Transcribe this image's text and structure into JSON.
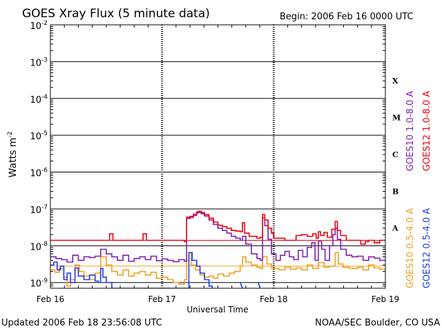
{
  "chart_data": {
    "type": "line",
    "title": "GOES Xray Flux (5 minute data)",
    "begin_label": "Begin:  2006 Feb 16 0000 UTC",
    "ylabel_text": "Watts m",
    "ylabel_sup": "-2",
    "xlabel": "Universal Time",
    "yscale": "log",
    "ylim": [
      7e-10,
      0.01
    ],
    "xlim": [
      16,
      19
    ],
    "x_ticks": [
      {
        "value": 16,
        "label": "Feb 16"
      },
      {
        "value": 17,
        "label": "Feb 17"
      },
      {
        "value": 18,
        "label": "Feb 18"
      },
      {
        "value": 19,
        "label": "Feb 19"
      }
    ],
    "y_ticks": [
      {
        "exp": -2,
        "base": "10",
        "sup": "-2"
      },
      {
        "exp": -3,
        "base": "10",
        "sup": "-3"
      },
      {
        "exp": -4,
        "base": "10",
        "sup": "-4"
      },
      {
        "exp": -5,
        "base": "10",
        "sup": "-5"
      },
      {
        "exp": -6,
        "base": "10",
        "sup": "-6"
      },
      {
        "exp": -7,
        "base": "10",
        "sup": "-7"
      },
      {
        "exp": -8,
        "base": "10",
        "sup": "-8"
      },
      {
        "exp": -9,
        "base": "10",
        "sup": "-9"
      }
    ],
    "flare_classes": [
      {
        "label": "X",
        "exp": -3.5
      },
      {
        "label": "M",
        "exp": -4.5
      },
      {
        "label": "C",
        "exp": -5.5
      },
      {
        "label": "B",
        "exp": -6.5
      },
      {
        "label": "A",
        "exp": -7.5
      }
    ],
    "legend_right": [
      {
        "name": "GOES12 1.0-8.0 A",
        "color": "#e8000b"
      },
      {
        "name": "GOES10 1.0-8.0 A",
        "color": "#7f1fb0"
      },
      {
        "name": "GOES12 0.5-4.0 A",
        "color": "#1f3fe0"
      },
      {
        "name": "GOES10 0.5-4.0 A",
        "color": "#f0a020"
      }
    ],
    "series": [
      {
        "name": "GOES12 1.0-8.0 A",
        "color": "#e8000b",
        "points": [
          [
            16.0,
            1.4e-08
          ],
          [
            16.5,
            1.4e-08
          ],
          [
            16.53,
            2.1e-08
          ],
          [
            16.56,
            1.4e-08
          ],
          [
            16.8,
            1.4e-08
          ],
          [
            16.83,
            2.1e-08
          ],
          [
            16.86,
            1.4e-08
          ],
          [
            17.2,
            1.4e-08
          ],
          [
            17.2,
            1.3e-08
          ],
          [
            17.22,
            1.4e-08
          ],
          [
            17.22,
            6e-08
          ],
          [
            17.25,
            6.3e-08
          ],
          [
            17.28,
            7.2e-08
          ],
          [
            17.31,
            8.4e-08
          ],
          [
            17.33,
            8.6e-08
          ],
          [
            17.35,
            8e-08
          ],
          [
            17.38,
            7e-08
          ],
          [
            17.42,
            5.6e-08
          ],
          [
            17.46,
            4.4e-08
          ],
          [
            17.5,
            3.6e-08
          ],
          [
            17.54,
            3.3e-08
          ],
          [
            17.58,
            3e-08
          ],
          [
            17.62,
            2.6e-08
          ],
          [
            17.66,
            2.5e-08
          ],
          [
            17.7,
            2.4e-08
          ],
          [
            17.72,
            4.2e-08
          ],
          [
            17.74,
            2.2e-08
          ],
          [
            17.78,
            1.8e-08
          ],
          [
            17.85,
            1.6e-08
          ],
          [
            17.88,
            1.7e-08
          ],
          [
            17.9,
            7e-08
          ],
          [
            17.92,
            5e-08
          ],
          [
            17.95,
            3e-08
          ],
          [
            17.98,
            2.2e-08
          ],
          [
            18.0,
            1.6e-08
          ],
          [
            18.1,
            1.4e-08
          ],
          [
            18.18,
            1.4e-08
          ],
          [
            18.2,
            1.9e-08
          ],
          [
            18.25,
            2e-08
          ],
          [
            18.3,
            1.8e-08
          ],
          [
            18.35,
            2.1e-08
          ],
          [
            18.38,
            1.6e-08
          ],
          [
            18.4,
            2.4e-08
          ],
          [
            18.42,
            1.9e-08
          ],
          [
            18.45,
            2.3e-08
          ],
          [
            18.48,
            1.7e-08
          ],
          [
            18.52,
            2.8e-08
          ],
          [
            18.55,
            4.6e-08
          ],
          [
            18.57,
            2.6e-08
          ],
          [
            18.6,
            1.9e-08
          ],
          [
            18.65,
            1.4e-08
          ],
          [
            18.7,
            1.4e-08
          ],
          [
            18.75,
            1.4e-08
          ],
          [
            18.78,
            1.1e-08
          ],
          [
            18.82,
            1.3e-08
          ],
          [
            18.85,
            1.4e-08
          ],
          [
            18.9,
            1.2e-08
          ],
          [
            18.95,
            1.4e-08
          ],
          [
            19.0,
            1.4e-08
          ]
        ]
      },
      {
        "name": "GOES10 1.0-8.0 A",
        "color": "#7f1fb0",
        "points": [
          [
            16.0,
            5e-09
          ],
          [
            16.05,
            4.5e-09
          ],
          [
            16.1,
            4.2e-09
          ],
          [
            16.15,
            3.6e-09
          ],
          [
            16.2,
            5.5e-09
          ],
          [
            16.25,
            4e-09
          ],
          [
            16.3,
            5e-09
          ],
          [
            16.35,
            4.8e-09
          ],
          [
            16.4,
            5.2e-09
          ],
          [
            16.45,
            8e-09
          ],
          [
            16.5,
            6e-09
          ],
          [
            16.55,
            5e-09
          ],
          [
            16.6,
            4e-09
          ],
          [
            16.65,
            5.5e-09
          ],
          [
            16.7,
            3.8e-09
          ],
          [
            16.75,
            4.5e-09
          ],
          [
            16.8,
            5e-09
          ],
          [
            16.85,
            4.2e-09
          ],
          [
            16.9,
            5.2e-09
          ],
          [
            16.95,
            3.9e-09
          ],
          [
            17.0,
            4.4e-09
          ],
          [
            17.05,
            4e-09
          ],
          [
            17.1,
            3.7e-09
          ],
          [
            17.15,
            4.2e-09
          ],
          [
            17.2,
            3.8e-09
          ],
          [
            17.22,
            5.5e-08
          ],
          [
            17.25,
            5.8e-08
          ],
          [
            17.28,
            6.6e-08
          ],
          [
            17.31,
            7.8e-08
          ],
          [
            17.33,
            8e-08
          ],
          [
            17.35,
            7.4e-08
          ],
          [
            17.38,
            6.4e-08
          ],
          [
            17.42,
            5e-08
          ],
          [
            17.46,
            3.8e-08
          ],
          [
            17.5,
            3e-08
          ],
          [
            17.54,
            2.6e-08
          ],
          [
            17.58,
            2.2e-08
          ],
          [
            17.62,
            1.8e-08
          ],
          [
            17.66,
            1.6e-08
          ],
          [
            17.7,
            1.4e-08
          ],
          [
            17.72,
            1.8e-08
          ],
          [
            17.75,
            1.1e-08
          ],
          [
            17.8,
            6e-09
          ],
          [
            17.85,
            4.5e-09
          ],
          [
            17.88,
            4e-09
          ],
          [
            17.9,
            5.8e-08
          ],
          [
            17.92,
            3.5e-08
          ],
          [
            17.95,
            1.5e-08
          ],
          [
            17.98,
            6e-09
          ],
          [
            18.02,
            4e-09
          ],
          [
            18.06,
            5.5e-09
          ],
          [
            18.1,
            7e-09
          ],
          [
            18.14,
            5e-09
          ],
          [
            18.18,
            4.2e-09
          ],
          [
            18.22,
            7.5e-09
          ],
          [
            18.26,
            5e-09
          ],
          [
            18.3,
            9e-09
          ],
          [
            18.34,
            1.2e-08
          ],
          [
            18.37,
            4e-09
          ],
          [
            18.4,
            1.3e-08
          ],
          [
            18.43,
            8e-09
          ],
          [
            18.46,
            4e-09
          ],
          [
            18.5,
            1e-08
          ],
          [
            18.53,
            2e-08
          ],
          [
            18.55,
            3e-08
          ],
          [
            18.57,
            1.5e-08
          ],
          [
            18.6,
            8e-09
          ],
          [
            18.65,
            5.5e-09
          ],
          [
            18.7,
            5e-09
          ],
          [
            18.75,
            5.2e-09
          ],
          [
            18.8,
            4e-09
          ],
          [
            18.85,
            5e-09
          ],
          [
            18.9,
            4.6e-09
          ],
          [
            18.95,
            4e-09
          ],
          [
            19.0,
            4e-09
          ]
        ]
      },
      {
        "name": "GOES10 0.5-4.0 A",
        "color": "#f0a020",
        "points": [
          [
            16.0,
            2.2e-09
          ],
          [
            16.04,
            1.9e-09
          ],
          [
            16.08,
            2.4e-09
          ],
          [
            16.12,
            1.4e-09
          ],
          [
            16.15,
            8e-10
          ],
          [
            16.18,
            1.2e-09
          ],
          [
            16.22,
            3e-09
          ],
          [
            16.26,
            2e-09
          ],
          [
            16.3,
            1.5e-09
          ],
          [
            16.35,
            1.2e-09
          ],
          [
            16.4,
            1.8e-09
          ],
          [
            16.45,
            5e-09
          ],
          [
            16.5,
            3e-09
          ],
          [
            16.55,
            2e-09
          ],
          [
            16.6,
            1.6e-09
          ],
          [
            16.65,
            2.2e-09
          ],
          [
            16.7,
            1.5e-09
          ],
          [
            16.75,
            1.8e-09
          ],
          [
            16.8,
            2e-09
          ],
          [
            16.85,
            1.6e-09
          ],
          [
            16.9,
            1.9e-09
          ],
          [
            16.95,
            1.3e-09
          ],
          [
            17.0,
            1.4e-09
          ],
          [
            17.05,
            1.2e-09
          ],
          [
            17.1,
            1e-09
          ],
          [
            17.15,
            9e-10
          ],
          [
            17.2,
            1.2e-09
          ],
          [
            17.22,
            4e-09
          ],
          [
            17.24,
            6.5e-09
          ],
          [
            17.26,
            3e-09
          ],
          [
            17.3,
            2.2e-09
          ],
          [
            17.34,
            1.6e-09
          ],
          [
            17.38,
            1.4e-09
          ],
          [
            17.42,
            1.5e-09
          ],
          [
            17.46,
            1.3e-09
          ],
          [
            17.5,
            1.7e-09
          ],
          [
            17.55,
            1.5e-09
          ],
          [
            17.6,
            1.8e-09
          ],
          [
            17.65,
            2e-09
          ],
          [
            17.7,
            2.8e-09
          ],
          [
            17.72,
            5e-09
          ],
          [
            17.75,
            3.6e-09
          ],
          [
            17.8,
            3e-09
          ],
          [
            17.85,
            2.6e-09
          ],
          [
            17.88,
            2.4e-09
          ],
          [
            17.9,
            5e-09
          ],
          [
            17.94,
            3.2e-09
          ],
          [
            17.98,
            2.4e-09
          ],
          [
            18.05,
            2.2e-09
          ],
          [
            18.1,
            2.6e-09
          ],
          [
            18.15,
            2.3e-09
          ],
          [
            18.2,
            2.5e-09
          ],
          [
            18.25,
            2.2e-09
          ],
          [
            18.3,
            3e-09
          ],
          [
            18.35,
            2.4e-09
          ],
          [
            18.4,
            3.5e-09
          ],
          [
            18.45,
            2.6e-09
          ],
          [
            18.5,
            2.8e-09
          ],
          [
            18.55,
            6.5e-09
          ],
          [
            18.58,
            3.2e-09
          ],
          [
            18.62,
            2.6e-09
          ],
          [
            18.68,
            2.4e-09
          ],
          [
            18.75,
            2.6e-09
          ],
          [
            18.8,
            2.2e-09
          ],
          [
            18.85,
            3e-09
          ],
          [
            18.9,
            2.5e-09
          ],
          [
            18.95,
            2.3e-09
          ],
          [
            19.0,
            2.4e-09
          ]
        ]
      },
      {
        "name": "GOES12 0.5-4.0 A",
        "color": "#1f3fe0",
        "points": [
          [
            16.0,
            3e-09
          ],
          [
            16.03,
            3.6e-09
          ],
          [
            16.06,
            2.2e-09
          ],
          [
            16.09,
            2.8e-09
          ],
          [
            16.12,
            1.2e-09
          ],
          [
            16.15,
            1.8e-09
          ],
          [
            16.18,
            1e-09
          ],
          [
            16.22,
            2.5e-09
          ],
          [
            16.25,
            1.5e-09
          ],
          [
            16.3,
            1.2e-09
          ],
          [
            16.35,
            1.6e-09
          ],
          [
            16.4,
            1.1e-09
          ],
          [
            16.43,
            1e-09
          ],
          [
            16.45,
            2.4e-09
          ],
          [
            16.47,
            1.4e-09
          ],
          [
            16.5,
            1e-09
          ],
          [
            16.55,
            7e-10
          ],
          [
            17.2,
            7e-10
          ],
          [
            17.24,
            6.5e-09
          ],
          [
            17.27,
            4e-09
          ],
          [
            17.31,
            2.8e-09
          ],
          [
            17.34,
            1.8e-09
          ],
          [
            17.38,
            1.2e-09
          ],
          [
            17.42,
            8e-10
          ],
          [
            17.45,
            7e-10
          ]
        ]
      }
    ],
    "short_segments": [
      {
        "color": "#1f3fe0",
        "x0": 17.7,
        "x1": 17.72,
        "y0": 1e-09,
        "y1": 7e-10
      },
      {
        "color": "#1f3fe0",
        "x0": 17.86,
        "x1": 17.88,
        "y0": 1e-09,
        "y1": 7e-10
      }
    ],
    "reference_lines": [
      {
        "color": "#e8000b",
        "value": 1.4e-08
      },
      {
        "color": "#f0a020",
        "value": 2.8e-09
      }
    ]
  },
  "footer": {
    "updated": "Updated 2006 Feb 18 23:56:08 UTC",
    "credit": "NOAA/SEC Boulder, CO USA"
  }
}
